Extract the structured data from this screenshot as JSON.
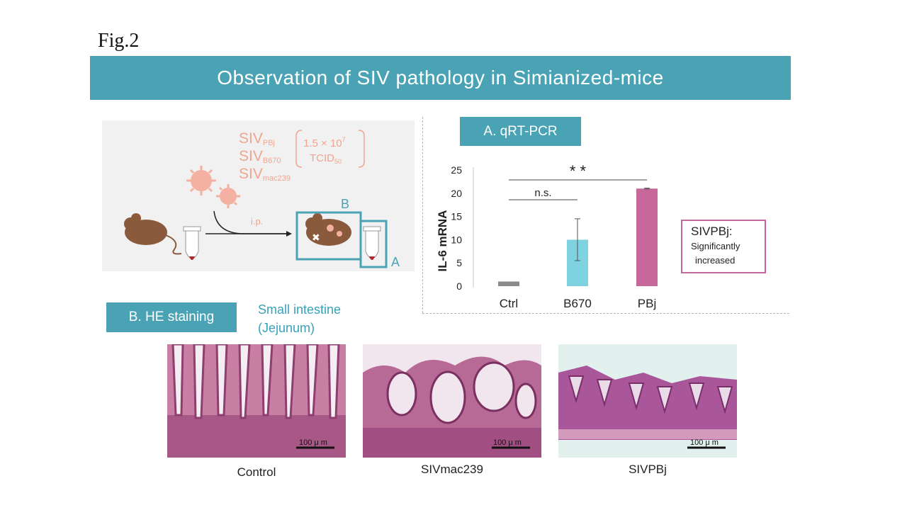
{
  "figure": {
    "label": "Fig.2",
    "title": "Observation of SIV pathology in Simianized-mice"
  },
  "schematic": {
    "virus_1_main": "SIV",
    "virus_1_sub": "PBj",
    "virus_2_main": "SIV",
    "virus_2_sub": "B670",
    "virus_3_main": "SIV",
    "virus_3_sub": "mac239",
    "dose_line1": "1.5 × 10",
    "dose_line1_sup": "7",
    "dose_line2": "TCID",
    "dose_line2_sub": "50",
    "route": "i.p.",
    "box_b_label": "B",
    "box_a_label": "A"
  },
  "sections": {
    "a_label": "A. qRT-PCR",
    "b_label": "B. HE staining",
    "tissue_line1": "Small intestine",
    "tissue_line2": "(Jejunum)"
  },
  "callout": {
    "line1": "SIVPBj:",
    "line2": "Significantly",
    "line3": "increased"
  },
  "chart_data": {
    "type": "bar",
    "categories": [
      "Ctrl",
      "B670",
      "PBj"
    ],
    "values": [
      1,
      10,
      21
    ],
    "error": [
      0,
      4.5,
      0.1
    ],
    "ylabel": "IL-6 mRNA",
    "ylim": [
      0,
      25
    ],
    "yticks": [
      "0",
      "5",
      "10",
      "15",
      "20",
      "25"
    ],
    "colors": [
      "#8a8a8a",
      "#7fd3e0",
      "#c6689a"
    ],
    "annotations": [
      {
        "text": "n.s.",
        "from": "Ctrl",
        "to": "B670"
      },
      {
        "text": "* *",
        "from": "Ctrl",
        "to": "PBj"
      }
    ]
  },
  "micrographs": [
    {
      "label": "Control",
      "scale": "100 μ m"
    },
    {
      "label": "SIVmac239",
      "scale": "100 μ m"
    },
    {
      "label": "SIVPBj",
      "scale": "100 μ m"
    }
  ],
  "colors": {
    "accent": "#4aa3b5",
    "virus_text": "#f0a58f",
    "mouse": "#8a5a3c",
    "highlight": "#c6689a"
  }
}
